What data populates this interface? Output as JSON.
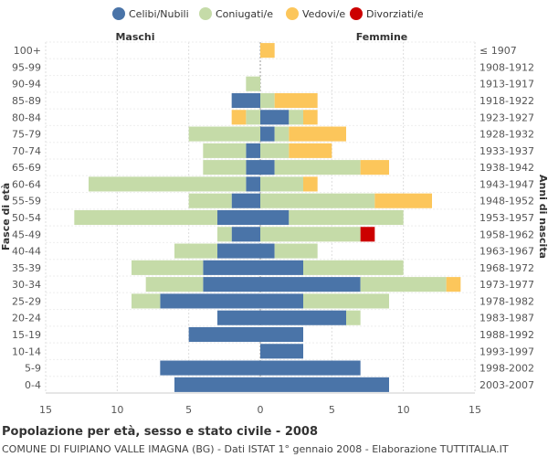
{
  "chart_data": {
    "type": "bar",
    "orientation": "horizontal-population-pyramid",
    "title": "Popolazione per età, sesso e stato civile - 2008",
    "subtitle": "COMUNE DI FUIPIANO VALLE IMAGNA (BG) - Dati ISTAT 1° gennaio 2008 - Elaborazione TUTTITALIA.IT",
    "left_label": "Maschi",
    "right_label": "Femmine",
    "ylabel_left": "Fasce di età",
    "ylabel_right": "Anni di nascita",
    "xlim": [
      -15,
      15
    ],
    "xticks": [
      -15,
      -10,
      -5,
      0,
      5,
      10,
      15
    ],
    "xtick_labels": [
      "15",
      "10",
      "5",
      "0",
      "5",
      "10",
      "15"
    ],
    "legend": [
      {
        "name": "Celibi/Nubili",
        "color": "#4a74a8"
      },
      {
        "name": "Coniugati/e",
        "color": "#c5dba8"
      },
      {
        "name": "Vedovi/e",
        "color": "#fcc65b"
      },
      {
        "name": "Divorziati/e",
        "color": "#cc0000"
      }
    ],
    "age_groups": [
      "100+",
      "95-99",
      "90-94",
      "85-89",
      "80-84",
      "75-79",
      "70-74",
      "65-69",
      "60-64",
      "55-59",
      "50-54",
      "45-49",
      "40-44",
      "35-39",
      "30-34",
      "25-29",
      "20-24",
      "15-19",
      "10-14",
      "5-9",
      "0-4"
    ],
    "birth_years": [
      "≤ 1907",
      "1908-1912",
      "1913-1917",
      "1918-1922",
      "1923-1927",
      "1928-1932",
      "1933-1937",
      "1938-1942",
      "1943-1947",
      "1948-1952",
      "1953-1957",
      "1958-1962",
      "1963-1967",
      "1968-1972",
      "1973-1977",
      "1978-1982",
      "1983-1987",
      "1988-1992",
      "1993-1997",
      "1998-2002",
      "2003-2007"
    ],
    "males": {
      "celibi": [
        0,
        0,
        0,
        2,
        0,
        0,
        1,
        1,
        1,
        2,
        3,
        2,
        3,
        4,
        4,
        7,
        3,
        5,
        0,
        7,
        6
      ],
      "coniugati": [
        0,
        0,
        1,
        0,
        1,
        5,
        3,
        3,
        11,
        3,
        10,
        1,
        3,
        5,
        4,
        2,
        0,
        0,
        0,
        0,
        0
      ],
      "vedovi": [
        0,
        0,
        0,
        0,
        1,
        0,
        0,
        0,
        0,
        0,
        0,
        0,
        0,
        0,
        0,
        0,
        0,
        0,
        0,
        0,
        0
      ],
      "divorziati": [
        0,
        0,
        0,
        0,
        0,
        0,
        0,
        0,
        0,
        0,
        0,
        0,
        0,
        0,
        0,
        0,
        0,
        0,
        0,
        0,
        0
      ]
    },
    "females": {
      "nubili": [
        0,
        0,
        0,
        0,
        2,
        1,
        0,
        1,
        0,
        0,
        2,
        0,
        1,
        3,
        7,
        3,
        6,
        3,
        3,
        7,
        9
      ],
      "coniugate": [
        0,
        0,
        0,
        1,
        1,
        1,
        2,
        6,
        3,
        8,
        8,
        7,
        3,
        7,
        6,
        6,
        1,
        0,
        0,
        0,
        0
      ],
      "vedove": [
        1,
        0,
        0,
        3,
        1,
        4,
        3,
        2,
        1,
        4,
        0,
        0,
        0,
        0,
        1,
        0,
        0,
        0,
        0,
        0,
        0
      ],
      "divorziate": [
        0,
        0,
        0,
        0,
        0,
        0,
        0,
        0,
        0,
        0,
        0,
        1,
        0,
        0,
        0,
        0,
        0,
        0,
        0,
        0,
        0
      ]
    }
  }
}
